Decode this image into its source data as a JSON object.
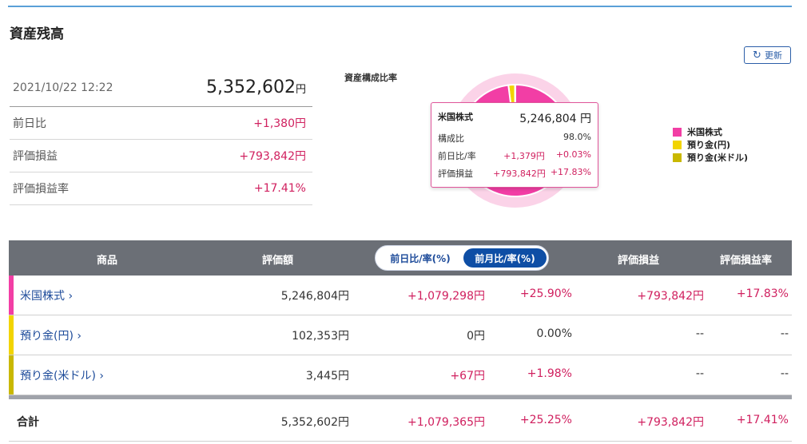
{
  "title": "資産残高",
  "refresh_label": "更新",
  "summary": {
    "datetime": "2021/10/22 12:22",
    "total": "5,352,602",
    "total_unit": "円",
    "rows": [
      {
        "label": "前日比",
        "value": "+1,380円"
      },
      {
        "label": "評価損益",
        "value": "+793,842円"
      },
      {
        "label": "評価損益率",
        "value": "+17.41%"
      }
    ]
  },
  "pie": {
    "title": "資産構成比率",
    "slices": [
      {
        "name": "米国株式",
        "share": 98.0,
        "color": "#f23ea5"
      },
      {
        "name": "預り金(円)",
        "share": 1.9,
        "color": "#f2d400"
      },
      {
        "name": "預り金(米ドル)",
        "share": 0.1,
        "color": "#c9b800"
      }
    ]
  },
  "tooltip": {
    "name": "米国株式",
    "amount": "5,246,804 円",
    "ratio_label": "構成比",
    "ratio": "98.0%",
    "day_label": "前日比/率",
    "day_value": "+1,379円",
    "day_rate": "+0.03%",
    "pl_label": "評価損益",
    "pl_value": "+793,842円",
    "pl_rate": "+17.83%"
  },
  "legend": [
    "米国株式",
    "預り金(円)",
    "預り金(米ドル)"
  ],
  "table": {
    "headers": {
      "product": "商品",
      "valuation": "評価額",
      "toggle_day": "前日比/率(%)",
      "toggle_month": "前月比/率(%)",
      "pl": "評価損益",
      "pl_rate": "評価損益率"
    },
    "rows": [
      {
        "name": "米国株式",
        "valuation": "5,246,804円",
        "change": "+1,079,298円",
        "rate": "+25.90%",
        "pl": "+793,842円",
        "pl_rate": "+17.83%"
      },
      {
        "name": "預り金(円)",
        "valuation": "102,353円",
        "change": "0円",
        "rate": "0.00%",
        "pl": "--",
        "pl_rate": "--"
      },
      {
        "name": "預り金(米ドル)",
        "valuation": "3,445円",
        "change": "+67円",
        "rate": "+1.98%",
        "pl": "--",
        "pl_rate": "--"
      }
    ],
    "total": {
      "name": "合計",
      "valuation": "5,352,602円",
      "change": "+1,079,365円",
      "rate": "+25.25%",
      "pl": "+793,842円",
      "pl_rate": "+17.41%"
    },
    "chevron": "›"
  }
}
